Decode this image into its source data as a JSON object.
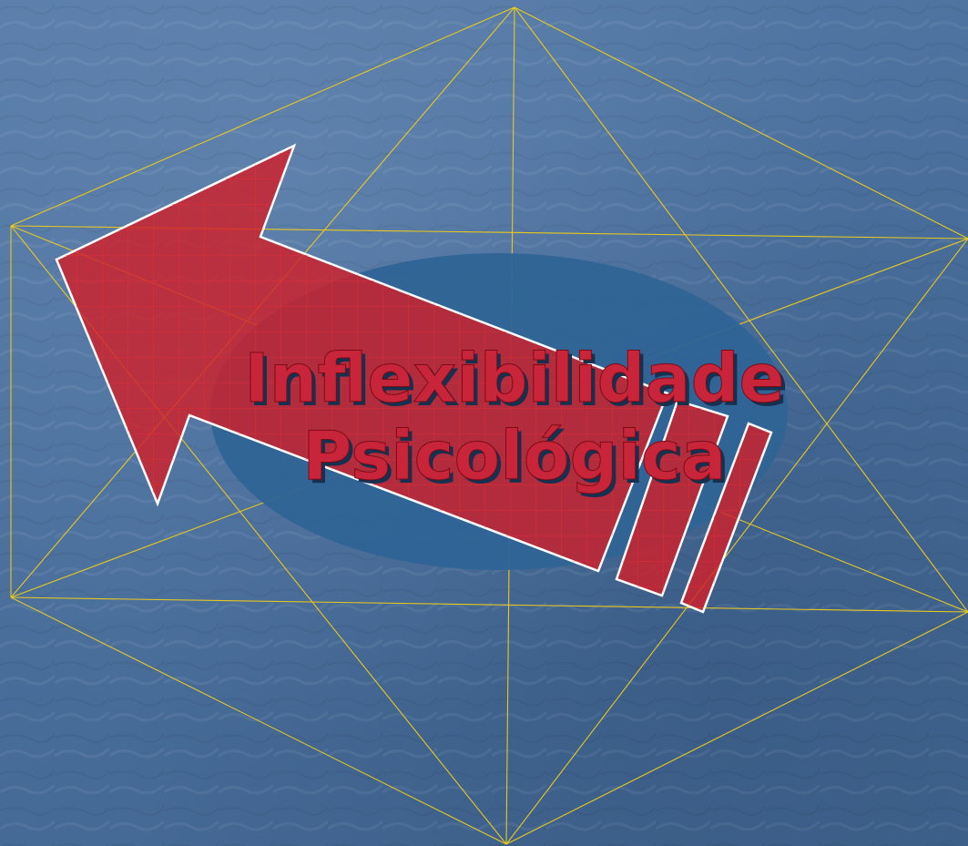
{
  "slide": {
    "title_lines": [
      "Inflexibilidade",
      "Psicológica"
    ]
  },
  "colors": {
    "background": "#4a6f9c",
    "lines": "#e8c820",
    "ellipse": "#2f6496",
    "arrow": "#d0202a",
    "title_fill": "#c8243a",
    "title_shadow": "#16304f"
  }
}
